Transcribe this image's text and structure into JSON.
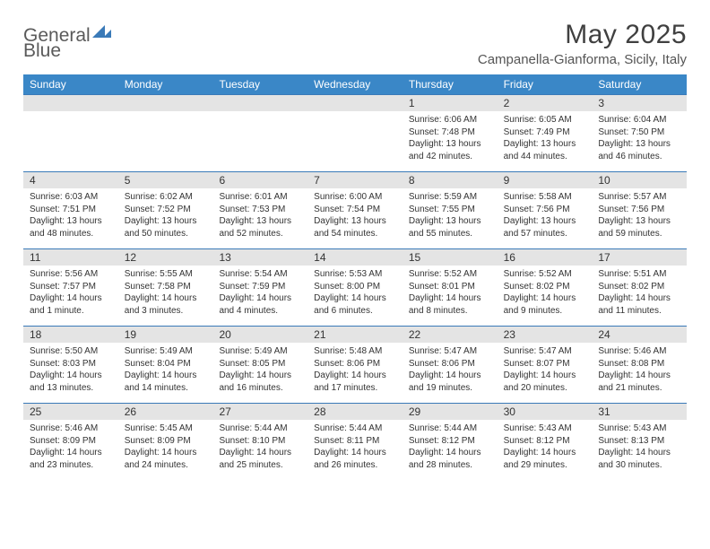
{
  "brand": {
    "part1": "General",
    "part2": "Blue"
  },
  "title": "May 2025",
  "location": "Campanella-Gianforma, Sicily, Italy",
  "colors": {
    "header_band": "#3a87c7",
    "daynum_band": "#e4e4e4",
    "rule": "#3a7ab8",
    "text": "#333333",
    "title": "#404040"
  },
  "calendar": {
    "type": "table",
    "day_names": [
      "Sunday",
      "Monday",
      "Tuesday",
      "Wednesday",
      "Thursday",
      "Friday",
      "Saturday"
    ],
    "weeks": [
      [
        null,
        null,
        null,
        null,
        {
          "n": "1",
          "sr": "6:06 AM",
          "ss": "7:48 PM",
          "dl": "13 hours and 42 minutes."
        },
        {
          "n": "2",
          "sr": "6:05 AM",
          "ss": "7:49 PM",
          "dl": "13 hours and 44 minutes."
        },
        {
          "n": "3",
          "sr": "6:04 AM",
          "ss": "7:50 PM",
          "dl": "13 hours and 46 minutes."
        }
      ],
      [
        {
          "n": "4",
          "sr": "6:03 AM",
          "ss": "7:51 PM",
          "dl": "13 hours and 48 minutes."
        },
        {
          "n": "5",
          "sr": "6:02 AM",
          "ss": "7:52 PM",
          "dl": "13 hours and 50 minutes."
        },
        {
          "n": "6",
          "sr": "6:01 AM",
          "ss": "7:53 PM",
          "dl": "13 hours and 52 minutes."
        },
        {
          "n": "7",
          "sr": "6:00 AM",
          "ss": "7:54 PM",
          "dl": "13 hours and 54 minutes."
        },
        {
          "n": "8",
          "sr": "5:59 AM",
          "ss": "7:55 PM",
          "dl": "13 hours and 55 minutes."
        },
        {
          "n": "9",
          "sr": "5:58 AM",
          "ss": "7:56 PM",
          "dl": "13 hours and 57 minutes."
        },
        {
          "n": "10",
          "sr": "5:57 AM",
          "ss": "7:56 PM",
          "dl": "13 hours and 59 minutes."
        }
      ],
      [
        {
          "n": "11",
          "sr": "5:56 AM",
          "ss": "7:57 PM",
          "dl": "14 hours and 1 minute."
        },
        {
          "n": "12",
          "sr": "5:55 AM",
          "ss": "7:58 PM",
          "dl": "14 hours and 3 minutes."
        },
        {
          "n": "13",
          "sr": "5:54 AM",
          "ss": "7:59 PM",
          "dl": "14 hours and 4 minutes."
        },
        {
          "n": "14",
          "sr": "5:53 AM",
          "ss": "8:00 PM",
          "dl": "14 hours and 6 minutes."
        },
        {
          "n": "15",
          "sr": "5:52 AM",
          "ss": "8:01 PM",
          "dl": "14 hours and 8 minutes."
        },
        {
          "n": "16",
          "sr": "5:52 AM",
          "ss": "8:02 PM",
          "dl": "14 hours and 9 minutes."
        },
        {
          "n": "17",
          "sr": "5:51 AM",
          "ss": "8:02 PM",
          "dl": "14 hours and 11 minutes."
        }
      ],
      [
        {
          "n": "18",
          "sr": "5:50 AM",
          "ss": "8:03 PM",
          "dl": "14 hours and 13 minutes."
        },
        {
          "n": "19",
          "sr": "5:49 AM",
          "ss": "8:04 PM",
          "dl": "14 hours and 14 minutes."
        },
        {
          "n": "20",
          "sr": "5:49 AM",
          "ss": "8:05 PM",
          "dl": "14 hours and 16 minutes."
        },
        {
          "n": "21",
          "sr": "5:48 AM",
          "ss": "8:06 PM",
          "dl": "14 hours and 17 minutes."
        },
        {
          "n": "22",
          "sr": "5:47 AM",
          "ss": "8:06 PM",
          "dl": "14 hours and 19 minutes."
        },
        {
          "n": "23",
          "sr": "5:47 AM",
          "ss": "8:07 PM",
          "dl": "14 hours and 20 minutes."
        },
        {
          "n": "24",
          "sr": "5:46 AM",
          "ss": "8:08 PM",
          "dl": "14 hours and 21 minutes."
        }
      ],
      [
        {
          "n": "25",
          "sr": "5:46 AM",
          "ss": "8:09 PM",
          "dl": "14 hours and 23 minutes."
        },
        {
          "n": "26",
          "sr": "5:45 AM",
          "ss": "8:09 PM",
          "dl": "14 hours and 24 minutes."
        },
        {
          "n": "27",
          "sr": "5:44 AM",
          "ss": "8:10 PM",
          "dl": "14 hours and 25 minutes."
        },
        {
          "n": "28",
          "sr": "5:44 AM",
          "ss": "8:11 PM",
          "dl": "14 hours and 26 minutes."
        },
        {
          "n": "29",
          "sr": "5:44 AM",
          "ss": "8:12 PM",
          "dl": "14 hours and 28 minutes."
        },
        {
          "n": "30",
          "sr": "5:43 AM",
          "ss": "8:12 PM",
          "dl": "14 hours and 29 minutes."
        },
        {
          "n": "31",
          "sr": "5:43 AM",
          "ss": "8:13 PM",
          "dl": "14 hours and 30 minutes."
        }
      ]
    ],
    "labels": {
      "sunrise": "Sunrise:",
      "sunset": "Sunset:",
      "daylight": "Daylight:"
    }
  }
}
